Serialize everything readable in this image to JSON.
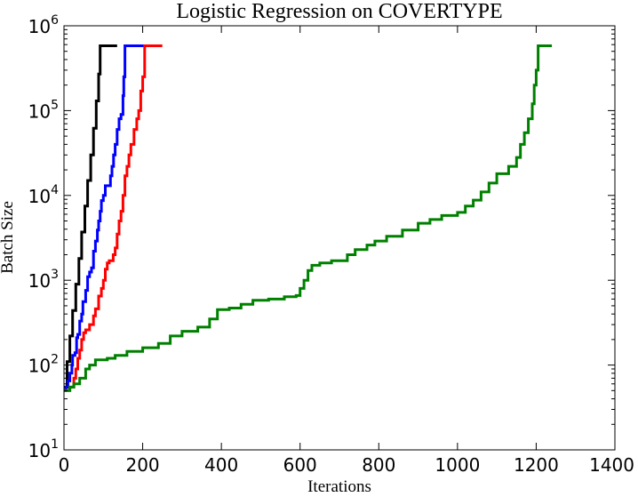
{
  "chart_data": {
    "type": "line",
    "title": "Logistic Regression on COVERTYPE",
    "xlabel": "Iterations",
    "ylabel": "Batch Size",
    "xlim": [
      0,
      1400
    ],
    "ylim": [
      10,
      1000000
    ],
    "yscale": "log",
    "grid": false,
    "x_ticks": [
      {
        "value": 0,
        "label": "0"
      },
      {
        "value": 200,
        "label": "200"
      },
      {
        "value": 400,
        "label": "400"
      },
      {
        "value": 600,
        "label": "600"
      },
      {
        "value": 800,
        "label": "800"
      },
      {
        "value": 1000,
        "label": "1000"
      },
      {
        "value": 1200,
        "label": "1200"
      },
      {
        "value": 1400,
        "label": "1400"
      }
    ],
    "y_ticks": [
      {
        "value": 10,
        "base": "10",
        "exp": "1"
      },
      {
        "value": 100,
        "base": "10",
        "exp": "2"
      },
      {
        "value": 1000,
        "base": "10",
        "exp": "3"
      },
      {
        "value": 10000,
        "base": "10",
        "exp": "4"
      },
      {
        "value": 100000,
        "base": "10",
        "exp": "5"
      },
      {
        "value": 1000000,
        "base": "10",
        "exp": "6"
      }
    ],
    "series": [
      {
        "color": "#000000",
        "points": [
          [
            0,
            55
          ],
          [
            8,
            110
          ],
          [
            15,
            220
          ],
          [
            22,
            440
          ],
          [
            30,
            900
          ],
          [
            38,
            1800
          ],
          [
            45,
            3700
          ],
          [
            53,
            7500
          ],
          [
            60,
            15000
          ],
          [
            68,
            30000
          ],
          [
            75,
            62000
          ],
          [
            82,
            130000
          ],
          [
            88,
            270000
          ],
          [
            92,
            581012
          ],
          [
            135,
            581012
          ]
        ]
      },
      {
        "color": "#0000ff",
        "points": [
          [
            0,
            50
          ],
          [
            5,
            55
          ],
          [
            10,
            65
          ],
          [
            15,
            80
          ],
          [
            20,
            100
          ],
          [
            22,
            130
          ],
          [
            28,
            140
          ],
          [
            32,
            210
          ],
          [
            35,
            230
          ],
          [
            40,
            330
          ],
          [
            45,
            400
          ],
          [
            48,
            560
          ],
          [
            55,
            760
          ],
          [
            60,
            1100
          ],
          [
            65,
            1250
          ],
          [
            70,
            1400
          ],
          [
            75,
            2200
          ],
          [
            80,
            2900
          ],
          [
            85,
            3900
          ],
          [
            88,
            5000
          ],
          [
            92,
            6500
          ],
          [
            95,
            8700
          ],
          [
            100,
            10000
          ],
          [
            105,
            13000
          ],
          [
            115,
            13000
          ],
          [
            118,
            17000
          ],
          [
            122,
            22000
          ],
          [
            126,
            30000
          ],
          [
            130,
            40000
          ],
          [
            135,
            60000
          ],
          [
            140,
            80000
          ],
          [
            145,
            90000
          ],
          [
            150,
            150000
          ],
          [
            152,
            250000
          ],
          [
            155,
            581012
          ],
          [
            202,
            581012
          ]
        ]
      },
      {
        "color": "#ff0000",
        "points": [
          [
            0,
            50
          ],
          [
            15,
            55
          ],
          [
            25,
            70
          ],
          [
            30,
            90
          ],
          [
            35,
            120
          ],
          [
            40,
            150
          ],
          [
            45,
            200
          ],
          [
            50,
            240
          ],
          [
            55,
            260
          ],
          [
            65,
            300
          ],
          [
            75,
            380
          ],
          [
            80,
            460
          ],
          [
            88,
            650
          ],
          [
            95,
            800
          ],
          [
            100,
            1000
          ],
          [
            105,
            1350
          ],
          [
            110,
            1600
          ],
          [
            115,
            1700
          ],
          [
            125,
            2000
          ],
          [
            130,
            2400
          ],
          [
            135,
            3500
          ],
          [
            140,
            5000
          ],
          [
            145,
            6500
          ],
          [
            150,
            10000
          ],
          [
            155,
            17000
          ],
          [
            160,
            22000
          ],
          [
            165,
            30000
          ],
          [
            170,
            40000
          ],
          [
            178,
            60000
          ],
          [
            185,
            80000
          ],
          [
            190,
            100000
          ],
          [
            195,
            170000
          ],
          [
            200,
            250000
          ],
          [
            205,
            581012
          ],
          [
            250,
            581012
          ]
        ]
      },
      {
        "color": "#008000",
        "points": [
          [
            0,
            50
          ],
          [
            15,
            55
          ],
          [
            25,
            60
          ],
          [
            40,
            70
          ],
          [
            55,
            90
          ],
          [
            65,
            100
          ],
          [
            80,
            115
          ],
          [
            110,
            120
          ],
          [
            130,
            130
          ],
          [
            160,
            145
          ],
          [
            200,
            160
          ],
          [
            240,
            180
          ],
          [
            270,
            220
          ],
          [
            300,
            250
          ],
          [
            340,
            280
          ],
          [
            370,
            350
          ],
          [
            390,
            450
          ],
          [
            420,
            470
          ],
          [
            450,
            520
          ],
          [
            480,
            580
          ],
          [
            520,
            600
          ],
          [
            560,
            640
          ],
          [
            590,
            660
          ],
          [
            600,
            800
          ],
          [
            610,
            1000
          ],
          [
            620,
            1300
          ],
          [
            630,
            1500
          ],
          [
            650,
            1600
          ],
          [
            680,
            1700
          ],
          [
            720,
            2000
          ],
          [
            740,
            2300
          ],
          [
            770,
            2600
          ],
          [
            790,
            2900
          ],
          [
            820,
            3300
          ],
          [
            860,
            3900
          ],
          [
            900,
            4700
          ],
          [
            930,
            5200
          ],
          [
            960,
            5800
          ],
          [
            1000,
            6300
          ],
          [
            1020,
            7500
          ],
          [
            1040,
            8800
          ],
          [
            1060,
            11000
          ],
          [
            1080,
            14000
          ],
          [
            1100,
            18000
          ],
          [
            1130,
            22000
          ],
          [
            1150,
            28000
          ],
          [
            1160,
            40000
          ],
          [
            1170,
            55000
          ],
          [
            1180,
            80000
          ],
          [
            1190,
            120000
          ],
          [
            1195,
            200000
          ],
          [
            1200,
            300000
          ],
          [
            1205,
            581012
          ],
          [
            1240,
            581012
          ]
        ]
      }
    ]
  }
}
